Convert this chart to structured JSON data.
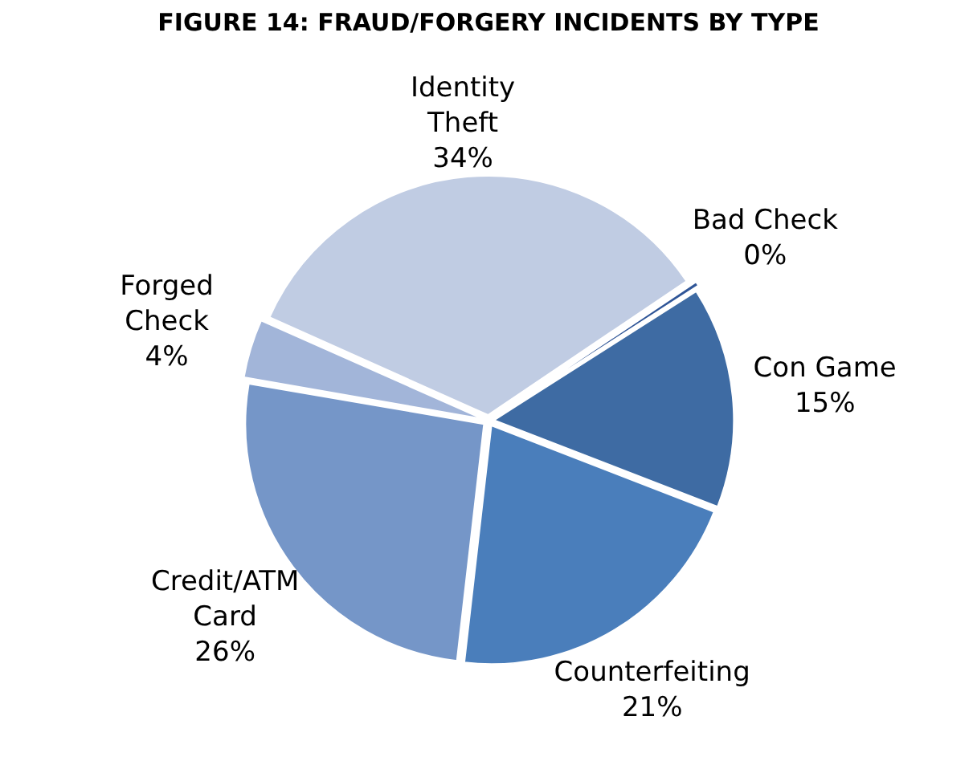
{
  "chart_data": {
    "type": "pie",
    "title": "FIGURE 14: FRAUD/FORGERY INCIDENTS BY TYPE",
    "categories": [
      "Bad Check",
      "Con Game",
      "Counterfeiting",
      "Credit/ATM Card",
      "Forged Check",
      "Identity Theft"
    ],
    "values": [
      0.4,
      15,
      21,
      26,
      4,
      34
    ],
    "value_labels": [
      "0%",
      "15%",
      "21%",
      "26%",
      "4%",
      "34%"
    ],
    "colors": [
      "#2f5597",
      "#3e6ba3",
      "#4a7ebb",
      "#7596c8",
      "#a2b5d9",
      "#c0cce3"
    ],
    "legend": false
  }
}
